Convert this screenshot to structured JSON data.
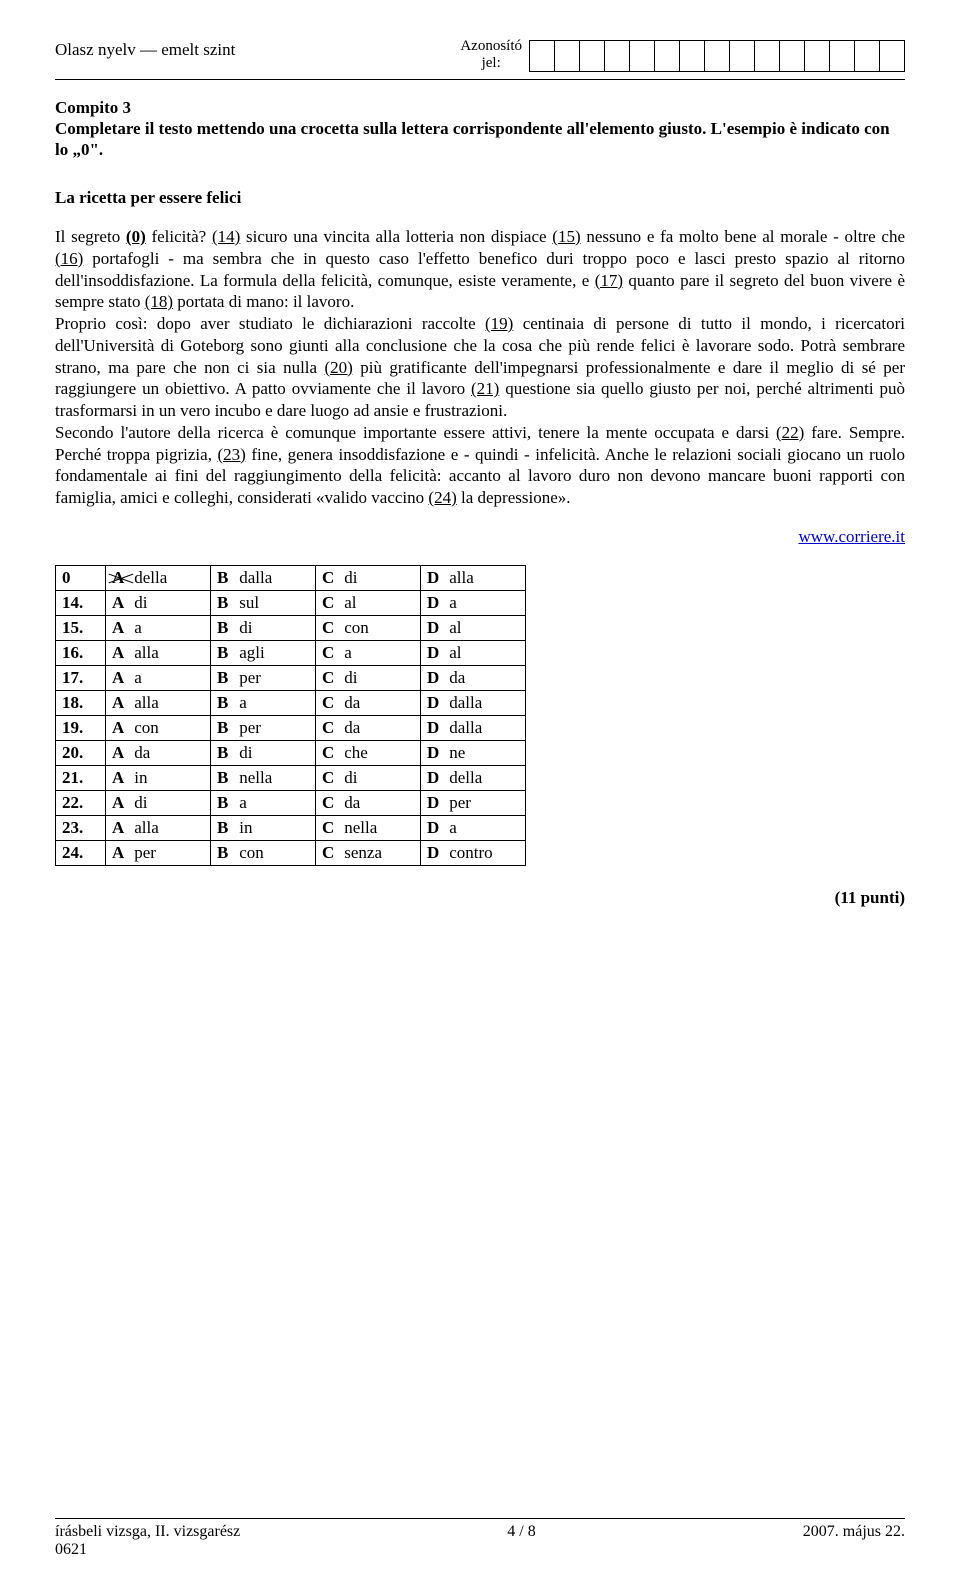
{
  "header": {
    "left": "Olasz nyelv — emelt szint",
    "center_l1": "Azonosító",
    "center_l2": "jel:",
    "box_count": 15
  },
  "task": {
    "title": "Compito 3",
    "instructions": "Completare il testo mettendo una crocetta sulla lettera corrispondente all'elemento giusto. L'esempio è indicato con lo „0\".",
    "subtitle": "La ricetta per essere felici"
  },
  "para": {
    "p1a": "Il segreto ",
    "p1_u0": "(0)",
    "p1b": " felicità? ",
    "p1_u14": "(14)",
    "p1c": " sicuro una vincita alla lotteria non dispiace ",
    "p1_u15": "(15)",
    "p1d": " nessuno e fa molto bene al morale - oltre che ",
    "p1_u16": "(16)",
    "p1e": " portafogli - ma sembra che in questo caso l'effetto benefico duri troppo poco e lasci presto spazio al ritorno dell'insoddisfazione. La formula della felicità, comunque, esiste veramente, e ",
    "p1_u17": "(17)",
    "p1f": " quanto pare il segreto del buon vivere è sempre stato ",
    "p1_u18": "(18)",
    "p1g": " portata di mano: il lavoro.",
    "p2a": "Proprio così: dopo aver studiato le dichiarazioni raccolte ",
    "p2_u19": "(19)",
    "p2b": " centinaia di persone di tutto il mondo, i ricercatori dell'Università di Goteborg sono giunti alla conclusione che la cosa che più rende felici è lavorare sodo. Potrà sembrare strano, ma pare che non ci sia nulla ",
    "p2_u20": "(20)",
    "p2c": " più gratificante dell'impegnarsi professionalmente e dare il meglio di sé per raggiungere un obiettivo. A patto ovviamente che il lavoro ",
    "p2_u21": "(21)",
    "p2d": " questione sia quello giusto per noi, perché altrimenti può trasformarsi in un vero incubo e dare luogo ad ansie e frustrazioni.",
    "p3a": "Secondo l'autore della ricerca è comunque importante essere attivi, tenere la mente occupata e darsi ",
    "p3_u22": "(22)",
    "p3b": " fare. Sempre. Perché troppa pigrizia, ",
    "p3_u23": "(23)",
    "p3c": " fine, genera insoddisfazione e - quindi - infelicità. Anche le relazioni sociali giocano un ruolo fondamentale ai fini del raggiungimento della felicità: accanto al lavoro duro non devono mancare buoni rapporti con famiglia, amici e colleghi, considerati «valido vaccino ",
    "p3_u24": "(24)",
    "p3d": " la depressione»."
  },
  "source": "www.corriere.it",
  "answers": {
    "rows": [
      {
        "num": "0",
        "a": "della",
        "b": "dalla",
        "c": "di",
        "d": "alla",
        "example": true
      },
      {
        "num": "14.",
        "a": "di",
        "b": "sul",
        "c": "al",
        "d": "a"
      },
      {
        "num": "15.",
        "a": "a",
        "b": "di",
        "c": "con",
        "d": "al"
      },
      {
        "num": "16.",
        "a": "alla",
        "b": "agli",
        "c": "a",
        "d": "al"
      },
      {
        "num": "17.",
        "a": "a",
        "b": "per",
        "c": "di",
        "d": "da"
      },
      {
        "num": "18.",
        "a": "alla",
        "b": "a",
        "c": "da",
        "d": "dalla"
      },
      {
        "num": "19.",
        "a": "con",
        "b": "per",
        "c": "da",
        "d": "dalla"
      },
      {
        "num": "20.",
        "a": "da",
        "b": "di",
        "c": "che",
        "d": "ne"
      },
      {
        "num": "21.",
        "a": "in",
        "b": "nella",
        "c": "di",
        "d": "della"
      },
      {
        "num": "22.",
        "a": "di",
        "b": "a",
        "c": "da",
        "d": "per"
      },
      {
        "num": "23.",
        "a": "alla",
        "b": "in",
        "c": "nella",
        "d": "a"
      },
      {
        "num": "24.",
        "a": "per",
        "b": "con",
        "c": "senza",
        "d": "contro"
      }
    ]
  },
  "points": "(11 punti)",
  "footer": {
    "left_l1": "írásbeli vizsga, II. vizsgarész",
    "left_l2": "0621",
    "center": "4 / 8",
    "right": "2007. május 22."
  }
}
